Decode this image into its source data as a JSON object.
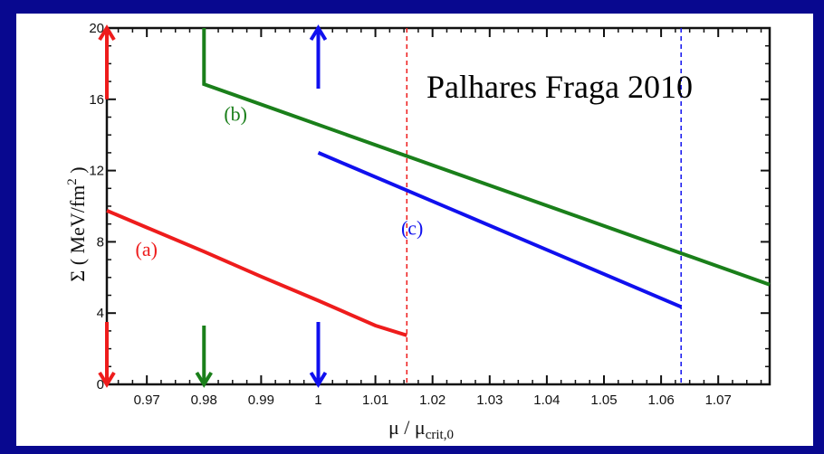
{
  "colors": {
    "background": "#08088f",
    "panel": "#ffffff",
    "red": "#ee1c1c",
    "green": "#1a7f1a",
    "blue": "#1010ee",
    "watermark": "#22ee22"
  },
  "annotation": "Palhares Fraga 2010",
  "chart_data": {
    "type": "line",
    "xlabel_main": "μ / μ",
    "xlabel_sub": "crit,0",
    "ylabel_main": "Σ ( MeV/fm",
    "ylabel_sup": "2",
    "ylabel_end": " )",
    "xlim": [
      0.963,
      1.079
    ],
    "ylim": [
      0,
      20
    ],
    "xticks": [
      0.97,
      0.98,
      0.99,
      1,
      1.01,
      1.02,
      1.03,
      1.04,
      1.05,
      1.06,
      1.07
    ],
    "xtick_labels": [
      "0.97",
      "0.98",
      "0.99",
      "1",
      "1.01",
      "1.02",
      "1.03",
      "1.04",
      "1.05",
      "1.06",
      "1.07"
    ],
    "yticks": [
      0,
      4,
      8,
      12,
      16,
      20
    ],
    "ytick_labels": [
      "0",
      "4",
      "8",
      "12",
      "16",
      "20"
    ],
    "series": [
      {
        "label": "(a)",
        "color": "#ee1c1c",
        "points": [
          [
            0.963,
            9.75
          ],
          [
            0.97,
            8.8
          ],
          [
            0.98,
            7.45
          ],
          [
            0.99,
            6.05
          ],
          [
            1.0,
            4.7
          ],
          [
            1.01,
            3.3
          ],
          [
            1.0155,
            2.75
          ]
        ],
        "label_at": [
          0.968,
          7.2
        ]
      },
      {
        "label": "(b)",
        "color": "#1a7f1a",
        "points": [
          [
            0.98,
            20.0
          ],
          [
            0.98,
            16.85
          ],
          [
            1.079,
            5.6
          ]
        ],
        "label_at": [
          0.9835,
          14.8
        ]
      },
      {
        "label": "(c)",
        "color": "#1010ee",
        "points": [
          [
            1.0,
            13.0
          ],
          [
            1.0635,
            4.35
          ]
        ],
        "label_at": [
          1.0145,
          8.4
        ]
      }
    ],
    "dashed_verticals": [
      {
        "x": 1.0155,
        "color": "#ee1c1c"
      },
      {
        "x": 1.0635,
        "color": "#1010ee"
      }
    ],
    "arrows": [
      {
        "x": 0.963,
        "from": 16.0,
        "to": 20.0,
        "color": "#ee1c1c"
      },
      {
        "x": 0.963,
        "from": 3.5,
        "to": 0.0,
        "color": "#ee1c1c"
      },
      {
        "x": 0.98,
        "from": 3.3,
        "to": 0.0,
        "color": "#1a7f1a"
      },
      {
        "x": 1.0,
        "from": 16.6,
        "to": 20.0,
        "color": "#1010ee"
      },
      {
        "x": 1.0,
        "from": 3.5,
        "to": 0.0,
        "color": "#1010ee"
      }
    ]
  }
}
